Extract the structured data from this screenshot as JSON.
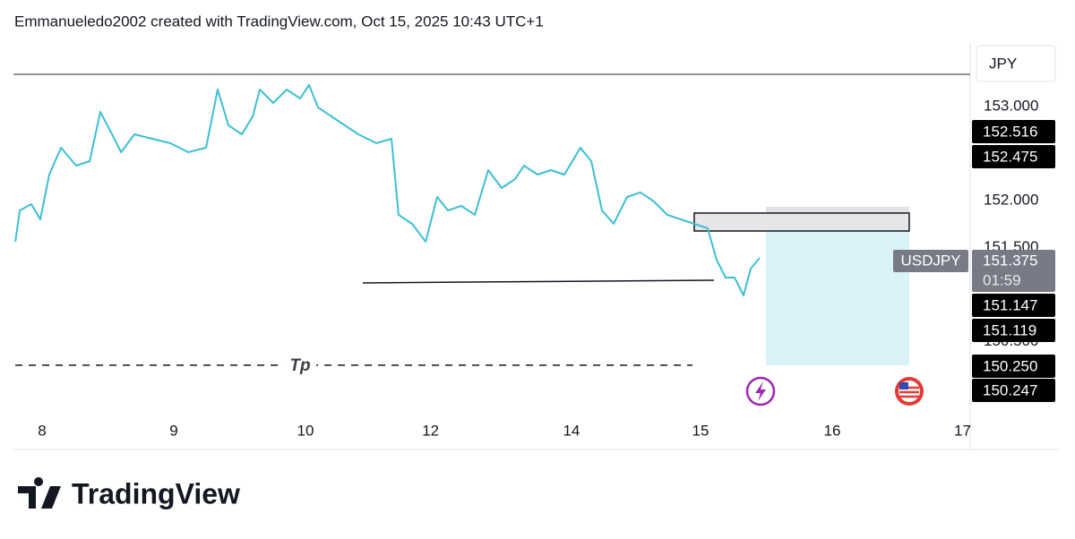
{
  "header": "Emmanueledo2002 created with TradingView.com, Oct 15, 2025 10:43 UTC+1",
  "brand": "TradingView",
  "chart_data": {
    "type": "line",
    "currency": "JPY",
    "symbol": "USDJPY",
    "countdown": "01:59",
    "color": "#3cbfd4",
    "xlim": [
      -0.218,
      7.048
    ],
    "ylim": [
      149.752,
      153.657
    ],
    "xticks": [
      {
        "value": 0,
        "label": "8"
      },
      {
        "value": 1,
        "label": "9"
      },
      {
        "value": 2,
        "label": "10"
      },
      {
        "value": 2.95,
        "label": "12"
      },
      {
        "value": 4.02,
        "label": "14"
      },
      {
        "value": 5,
        "label": "15"
      },
      {
        "value": 6,
        "label": "16"
      },
      {
        "value": 6.99,
        "label": "17"
      }
    ],
    "yticks": [
      {
        "value": 153,
        "label": "153.000"
      },
      {
        "value": 152,
        "label": "152.000"
      },
      {
        "value": 151.5,
        "label": "151.500"
      },
      {
        "value": 150.5,
        "label": "150.500"
      }
    ],
    "x": [
      -0.204,
      -0.17,
      -0.082,
      -0.014,
      0.054,
      0.143,
      0.259,
      0.361,
      0.442,
      0.531,
      0.599,
      0.701,
      0.837,
      0.973,
      1.109,
      1.245,
      1.333,
      1.415,
      1.517,
      1.599,
      1.653,
      1.755,
      1.857,
      1.959,
      2.027,
      2.095,
      2.197,
      2.299,
      2.401,
      2.537,
      2.653,
      2.707,
      2.81,
      2.912,
      3.0,
      3.082,
      3.184,
      3.286,
      3.388,
      3.49,
      3.592,
      3.66,
      3.762,
      3.864,
      3.966,
      4.088,
      4.17,
      4.252,
      4.34,
      4.442,
      4.544,
      4.646,
      4.748,
      4.85,
      4.952,
      5.054,
      5.122,
      5.19,
      5.259,
      5.327,
      5.381,
      5.449
    ],
    "values": [
      151.562,
      151.895,
      151.962,
      151.8,
      152.276,
      152.562,
      152.371,
      152.419,
      152.943,
      152.705,
      152.514,
      152.705,
      152.657,
      152.61,
      152.514,
      152.562,
      153.181,
      152.8,
      152.705,
      152.895,
      153.181,
      153.038,
      153.181,
      153.086,
      153.229,
      152.99,
      152.895,
      152.8,
      152.705,
      152.61,
      152.657,
      151.848,
      151.752,
      151.562,
      152.038,
      151.895,
      151.943,
      151.848,
      152.324,
      152.133,
      152.229,
      152.371,
      152.276,
      152.324,
      152.276,
      152.562,
      152.419,
      151.895,
      151.752,
      152.038,
      152.086,
      151.99,
      151.848,
      151.8,
      151.752,
      151.705,
      151.371,
      151.181,
      151.181,
      150.99,
      151.276,
      151.39
    ],
    "last_price": 151.375,
    "price_markers": [
      152.516,
      152.475,
      151.147,
      151.119,
      {
        "value": 150.25,
        "label": "150.250"
      },
      150.247
    ],
    "resistance_line": {
      "price": 153.343
    },
    "support_line": {
      "x": [
        2.435,
        5.102
      ],
      "y": [
        151.124,
        151.152
      ]
    },
    "tp_line": {
      "label": "Tp",
      "price": 150.248,
      "x": [
        -0.204,
        4.939
      ]
    },
    "entry_box": {
      "x": [
        4.952,
        6.585
      ],
      "y": [
        151.676,
        151.867
      ]
    },
    "stop_zone": {
      "x": [
        5.497,
        6.585
      ],
      "y": [
        151.676,
        151.933
      ]
    },
    "target_zone": {
      "x": [
        5.497,
        6.585
      ],
      "y": [
        150.248,
        151.676
      ]
    }
  }
}
